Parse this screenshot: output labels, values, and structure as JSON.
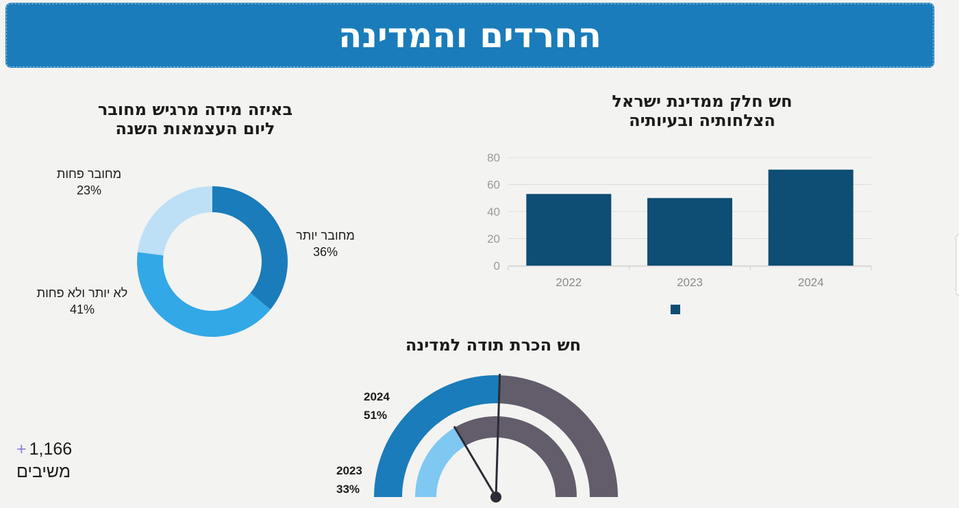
{
  "header": {
    "title": "החרדים והמדינה"
  },
  "donut_chart_title": "באיזה מידה מרגיש מחובר ליום העצמאות השנה",
  "bar_chart_title": "חש חלק ממדינת ישראל הצלחותיה ובעיותיה",
  "gauge_chart_title": "חש הכרת תודה למדינה",
  "respondents": {
    "plus": "+",
    "count": "1,166",
    "label": "משיבים"
  },
  "chart_data": [
    {
      "type": "pie",
      "title": "באיזה מידה מרגיש מחובר ליום העצמאות השנה",
      "donut": true,
      "slices": [
        {
          "label": "מחובר יותר",
          "value": 36,
          "display": "36%",
          "color": "#1a7cba"
        },
        {
          "label": "לא יותר ולא פחות",
          "value": 41,
          "display": "41%",
          "color": "#33a8e6"
        },
        {
          "label": "מחובר פחות",
          "value": 23,
          "display": "23%",
          "color": "#bde0f6"
        }
      ]
    },
    {
      "type": "bar",
      "title": "חש חלק ממדינת ישראל הצלחותיה ובעיותיה",
      "categories": [
        "2022",
        "2023",
        "2024"
      ],
      "values": [
        53,
        50,
        71
      ],
      "yticks": [
        "0",
        "20",
        "40",
        "60",
        "80"
      ],
      "ylim": [
        0,
        80
      ],
      "color": "#0e4d74",
      "legend": "bottom-center",
      "grid": true
    },
    {
      "type": "gauge",
      "title": "חש הכרת תודה למדינה",
      "range": [
        0,
        100
      ],
      "series": [
        {
          "year": "2024",
          "value": 51,
          "display": "51%",
          "color": "#1a7cba",
          "track": "#625c6b"
        },
        {
          "year": "2023",
          "value": 33,
          "display": "33%",
          "color": "#7ec8f2",
          "track": "#625c6b"
        }
      ]
    }
  ]
}
